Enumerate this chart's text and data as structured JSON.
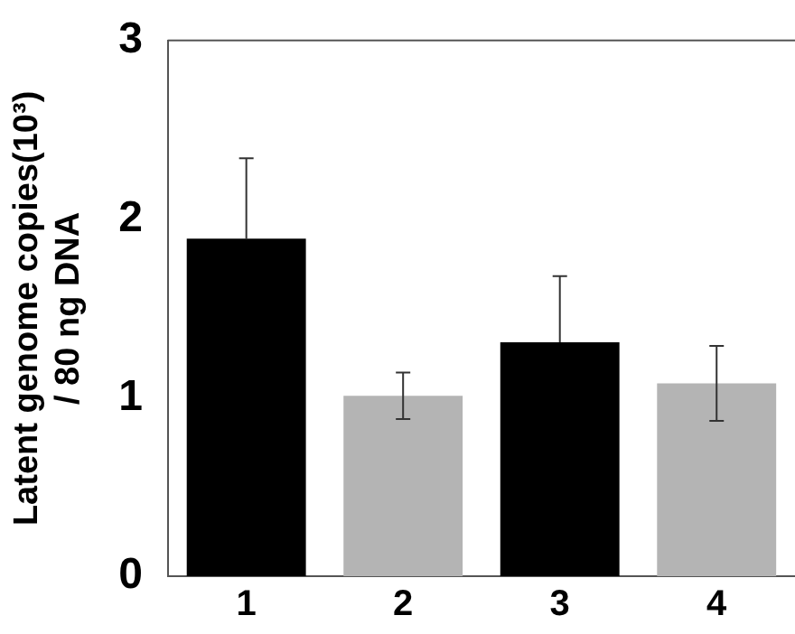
{
  "chart_data": {
    "type": "bar",
    "ylabel": "Latent genome copies(10³)\n/ 80 ng DNA",
    "categories": [
      "1",
      "2",
      "3",
      "4"
    ],
    "values": [
      1.89,
      1.01,
      1.31,
      1.08
    ],
    "colors": [
      "#000000",
      "#b4b4b4",
      "#000000",
      "#b4b4b4"
    ],
    "errors": [
      [
        1.89,
        2.34
      ],
      0.13,
      [
        1.31,
        1.68
      ],
      0.21
    ],
    "ylim": [
      0,
      3
    ],
    "yticks": [
      0,
      1,
      2,
      3
    ],
    "grid": false,
    "legend": false
  }
}
